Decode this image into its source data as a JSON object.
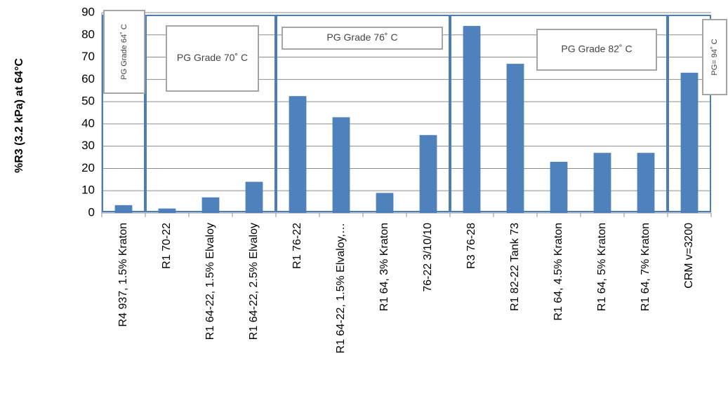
{
  "chart_data": {
    "type": "bar",
    "y_label": "%R3 (3.2 kPa) at 64°C",
    "categories": [
      "R4 937, 1.5% Kraton",
      "R1 70-22",
      "R1 64-22, 1.5% Elvaloy",
      "R1 64-22, 2.5% Elvaloy",
      "R1 76-22",
      "R1 64-22, 1.5% Elvaloy,…",
      "R1 64, 3% Kraton",
      "76-22 3/10/10",
      "R3 76-28",
      "R1 82-22 Tank 73",
      "R1 64, 4.5% Kraton",
      "R1 64, 5% Kraton",
      "R1 64, 7% Kraton",
      "CRM v=3200"
    ],
    "values": [
      3.5,
      2,
      7,
      14,
      52.5,
      43,
      9,
      35,
      84,
      67,
      23,
      27,
      27,
      63
    ],
    "color": "#4f81bd",
    "ylim": [
      0,
      90
    ],
    "yticks": [
      0,
      10,
      20,
      30,
      40,
      50,
      60,
      70,
      80,
      90
    ],
    "grid": true,
    "annotations": [
      "PG Grade 64˚ C",
      "PG Grade 70˚ C",
      "PG Grade 76˚ C",
      "PG Grade 82˚ C",
      "PG= 94˚ C"
    ]
  }
}
